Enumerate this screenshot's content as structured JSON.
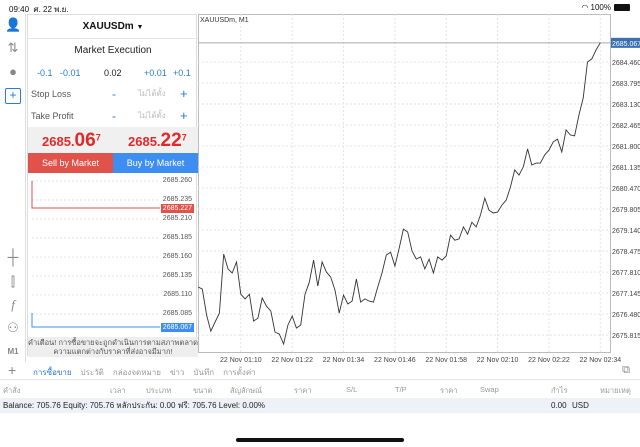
{
  "status": {
    "time": "09:40",
    "date": "ศ. 22 พ.ย.",
    "battery": "100%"
  },
  "order": {
    "symbol": "XAUUSDm",
    "mode": "Market Execution",
    "vol_buttons": [
      "-0.1",
      "-0.01",
      "+0.01",
      "+0.1"
    ],
    "volume": "0.02",
    "stop_loss": {
      "label": "Stop Loss",
      "minus": "-",
      "placeholder": "ไม่ได้ตั้ง",
      "plus": "+"
    },
    "take_profit": {
      "label": "Take Profit",
      "minus": "-",
      "placeholder": "ไม่ได้ตั้ง",
      "plus": "+"
    },
    "bid": {
      "main": "2685.",
      "big": "06",
      "sup": "7"
    },
    "ask": {
      "main": "2685.",
      "big": "22",
      "sup": "7"
    },
    "sell_label": "Sell by Market",
    "buy_label": "Buy by Market",
    "mini_levels": [
      "2685.260",
      "2685.235",
      "2685.210",
      "2685.185",
      "2685.160",
      "2685.135",
      "2685.110",
      "2685.085"
    ],
    "ask_tag": "2685.227",
    "bid_tag": "2685.067",
    "warning": [
      "คำเตือน! การซื้อขายจะถูกดำเนินการตามสภาพตลาด",
      "ความแตกต่างกับราคาที่ส่งอาจมีมาก!"
    ],
    "colors": {
      "sell": "#e0524a",
      "buy": "#3d8ef0",
      "price": "#e02a2a"
    }
  },
  "chart_data": {
    "type": "line",
    "title": "XAUUSDm, M1",
    "y_ticks": [
      "2685.067",
      "2684.460",
      "2683.795",
      "2683.130",
      "2682.465",
      "2681.800",
      "2681.135",
      "2680.470",
      "2679.805",
      "2679.140",
      "2678.475",
      "2677.810",
      "2677.145",
      "2676.480",
      "2675.815"
    ],
    "ylim": [
      2675.28,
      2685.98
    ],
    "x_ticks": [
      "22 Nov 01:10",
      "22 Nov 01:22",
      "22 Nov 01:34",
      "22 Nov 01:46",
      "22 Nov 01:58",
      "22 Nov 02:10",
      "22 Nov 02:22",
      "22 Nov 02:34"
    ],
    "xlim": [
      "01:00",
      "02:36"
    ],
    "current_price": "2685.067",
    "grid": true,
    "values": [
      2677.34,
      2677.27,
      2676.45,
      2675.94,
      2676.23,
      2676.51,
      2678.38,
      2677.91,
      2677.78,
      2678.13,
      2677.11,
      2676.96,
      2677.11,
      2676.26,
      2676.35,
      2676.99,
      2676.73,
      2676.58,
      2675.91,
      2675.85,
      2675.53,
      2676.13,
      2676.42,
      2676.04,
      2676.13,
      2677.11,
      2677.49,
      2678.19,
      2677.37,
      2678.13,
      2677.81,
      2677.65,
      2677.24,
      2676.51,
      2677.08,
      2676.8,
      2676.89,
      2677.59,
      2676.86,
      2676.96,
      2676.89,
      2676.86,
      2677.34,
      2677.78,
      2678.35,
      2678.44,
      2678.0,
      2678.57,
      2679.17,
      2679.08,
      2678.48,
      2678.22,
      2678.29,
      2677.91,
      2678.22,
      2677.78,
      2678.29,
      2678.19,
      2678.32,
      2678.98,
      2678.82,
      2678.86,
      2679.24,
      2679.01,
      2679.39,
      2679.24,
      2679.62,
      2680.15,
      2679.77,
      2679.68,
      2679.71,
      2679.93,
      2680.09,
      2680.5,
      2681.04,
      2680.88,
      2681.14,
      2681.71,
      2681.2,
      2681.26,
      2681.26,
      2681.52,
      2681.67,
      2681.93,
      2682.02,
      2681.61,
      2682.31,
      2682.15,
      2682.12,
      2682.78,
      2683.32,
      2684.46,
      2684.56,
      2684.84,
      2685.067
    ],
    "line_color": "#333333",
    "price_tag_color": "#3a6fb0"
  },
  "terminal": {
    "tabs": [
      "การซื้อขาย",
      "ประวัติ",
      "กล่องจดหมาย",
      "ข่าว",
      "บันทึก",
      "การตั้งค่า"
    ],
    "active_tab": "การซื้อขาย",
    "columns": [
      "คำสั่ง",
      "เวลา",
      "ประเภท",
      "ขนาด",
      "สัญลักษณ์",
      "ราคา",
      "S/L",
      "T/P",
      "ราคา",
      "Swap",
      "กำไร",
      "หมายเหตุ"
    ],
    "balance_line": "Balance: 705.76 Equity: 705.76 หลักประกัน: 0.00 ฟรี: 705.76 Level: 0.00%",
    "profit": "0.00",
    "currency": "USD"
  },
  "toolbar": {
    "timeframe": "M1"
  }
}
